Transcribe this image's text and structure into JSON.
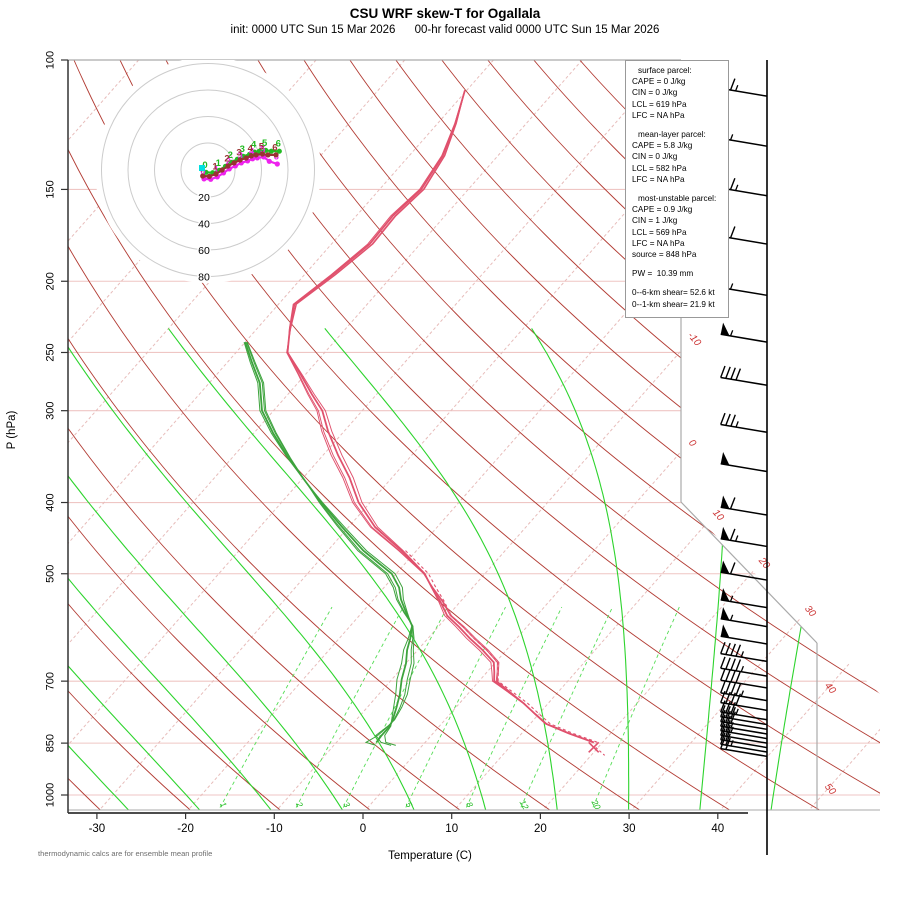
{
  "header": {
    "title": "CSU WRF skew-T for Ogallala",
    "subtitle": "init: 0000 UTC Sun 15 Mar 2026      00-hr forecast valid 0000 UTC Sun 15 Mar 2026"
  },
  "footnote": "thermodynamic calcs are for ensemble mean profile",
  "axes": {
    "ylabel": "P (hPa)",
    "xlabel": "Temperature (C)",
    "pressure_ticks": [
      100,
      150,
      200,
      250,
      300,
      400,
      500,
      700,
      850,
      1000
    ],
    "temp_ticks": [
      -30,
      -20,
      -10,
      0,
      10,
      20,
      30,
      40
    ],
    "isotherm_edge_labels": [
      -10,
      0,
      10,
      20,
      30,
      40,
      50
    ],
    "mixing_ratio_labels": [
      1,
      2,
      3,
      5,
      8,
      12,
      20
    ]
  },
  "info_box": {
    "sections": [
      {
        "title": "surface parcel:",
        "lines": [
          "CAPE = 0 J/kg",
          "CIN = 0 J/kg",
          "LCL = 619 hPa",
          "LFC = NA hPa"
        ]
      },
      {
        "title": "mean-layer parcel:",
        "lines": [
          "CAPE = 5.8 J/kg",
          "CIN = 0 J/kg",
          "LCL = 582 hPa",
          "LFC = NA hPa"
        ]
      },
      {
        "title": "most-unstable parcel:",
        "lines": [
          "CAPE = 0.9 J/kg",
          "CIN = 1 J/kg",
          "LCL = 569 hPa",
          "LFC = NA hPa",
          "source = 848 hPa"
        ]
      }
    ],
    "pw": "PW =  10.39 mm",
    "shear": [
      "0--6-km shear= 52.6 kt",
      "0--1-km shear= 21.9 kt"
    ]
  },
  "chart_data": {
    "type": "skewt",
    "temperature_profile": {
      "pressure": [
        110,
        122,
        135,
        150,
        163,
        178,
        196,
        215,
        232,
        250,
        268,
        285,
        300,
        320,
        345,
        370,
        400,
        432,
        465,
        500,
        522,
        545,
        570,
        590,
        612,
        635,
        660,
        680,
        700,
        725,
        750,
        775,
        800,
        825,
        848
      ],
      "temp_c": [
        -60.2,
        -58,
        -56.2,
        -55.3,
        -55.9,
        -55.7,
        -56.8,
        -58.2,
        -56.3,
        -54.2,
        -50.5,
        -47.3,
        -44.5,
        -41.8,
        -38.3,
        -34.8,
        -31.3,
        -27,
        -21.7,
        -16.8,
        -14.6,
        -12.3,
        -10.1,
        -7.7,
        -5.3,
        -2.7,
        -0.2,
        0.8,
        1.7,
        4.5,
        7.2,
        9.5,
        11.8,
        15.4,
        19.0
      ]
    },
    "dewpoint_profile": {
      "pressure": [
        242,
        258,
        275,
        300,
        322,
        348,
        375,
        400,
        430,
        465,
        500,
        522,
        542,
        565,
        589,
        612,
        635,
        662,
        696,
        730,
        760,
        790,
        806,
        830,
        848
      ],
      "temp_c": [
        -60,
        -57.2,
        -54.3,
        -51.3,
        -47.8,
        -43.6,
        -39.3,
        -35.5,
        -31,
        -26,
        -20.5,
        -18.3,
        -16.9,
        -15,
        -13,
        -12,
        -11.2,
        -10,
        -8.9,
        -7.6,
        -6.7,
        -5.9,
        -5.6,
        -5.6,
        -5.5
      ]
    },
    "ensemble": {
      "temp_member_amps": [
        0,
        5,
        -4,
        7
      ],
      "dew_member_amps": [
        0,
        6,
        -5,
        9
      ]
    },
    "surface_marker": {
      "pressure": 848,
      "temp_c": 19.0,
      "symbol": "x"
    },
    "wind_barbs": [
      {
        "p": 112,
        "kt": 65
      },
      {
        "p": 131,
        "kt": 55
      },
      {
        "p": 153,
        "kt": 65
      },
      {
        "p": 178,
        "kt": 60
      },
      {
        "p": 209,
        "kt": 55
      },
      {
        "p": 242,
        "kt": 55
      },
      {
        "p": 277,
        "kt": 40
      },
      {
        "p": 321,
        "kt": 35
      },
      {
        "p": 363,
        "kt": 50
      },
      {
        "p": 416,
        "kt": 60
      },
      {
        "p": 459,
        "kt": 65
      },
      {
        "p": 510,
        "kt": 60
      },
      {
        "p": 556,
        "kt": 55
      },
      {
        "p": 590,
        "kt": 55
      },
      {
        "p": 623,
        "kt": 50
      },
      {
        "p": 658,
        "kt": 45
      },
      {
        "p": 689,
        "kt": 45
      },
      {
        "p": 715,
        "kt": 40
      },
      {
        "p": 744,
        "kt": 45
      },
      {
        "p": 767,
        "kt": 40
      },
      {
        "p": 790,
        "kt": 35
      },
      {
        "p": 802,
        "kt": 30
      },
      {
        "p": 814,
        "kt": 30
      },
      {
        "p": 826,
        "kt": 25
      },
      {
        "p": 838,
        "kt": 25
      },
      {
        "p": 850,
        "kt": 20
      },
      {
        "p": 862,
        "kt": 20
      },
      {
        "p": 874,
        "kt": 25
      },
      {
        "p": 886,
        "kt": 20
      }
    ],
    "hodograph": {
      "ring_labels": [
        20,
        40,
        60,
        80
      ],
      "km_labels": [
        0,
        1,
        2,
        3,
        4,
        5,
        6
      ],
      "members": [
        {
          "name": "member-green",
          "color": "#22bb22",
          "u": [
            -1.5,
            3.5,
            8.5,
            13.1,
            17.5,
            22.1,
            26.5,
            31.2,
            35,
            38.5,
            43.3,
            47.5,
            53.5
          ],
          "v": [
            -1.7,
            -2,
            -0.2,
            2.8,
            5.8,
            8.1,
            10.3,
            11.8,
            13.4,
            14.1,
            14.8,
            14.1,
            14.1
          ]
        },
        {
          "name": "member-magenta",
          "color": "#ee22ee",
          "u": [
            -3,
            2,
            7,
            11.6,
            16,
            20.6,
            25,
            29.7,
            33.5,
            37,
            41.8,
            46,
            52
          ],
          "v": [
            -6.7,
            -7,
            -5.2,
            -2.2,
            0.8,
            3.1,
            5.3,
            6.8,
            8.4,
            9.1,
            9.8,
            6.5,
            4.5
          ]
        },
        {
          "name": "ensemble-mean",
          "color": "#993333",
          "u": [
            -4,
            1,
            6,
            10.6,
            15,
            19.6,
            24,
            28.7,
            32.5,
            36,
            40.8,
            45,
            51
          ],
          "v": [
            -4.5,
            -4.8,
            -3,
            0,
            3,
            5.3,
            7.5,
            9,
            10.6,
            11.3,
            12,
            11.3,
            11.3
          ]
        }
      ],
      "marker": {
        "type": "square",
        "color": "#00e0e0",
        "u": -4.5,
        "v": 1.5
      }
    },
    "background": {
      "isotherm_step_c": 10,
      "dry_adiabat_theta_k": {
        "from": 240,
        "to": 460,
        "step": 10
      },
      "moist_adiabat_start_c": {
        "from": -26,
        "to": 46,
        "step": 8
      },
      "mixing_ratio_g_kg": [
        1,
        2,
        3,
        5,
        8,
        12,
        20
      ]
    },
    "colors": {
      "temperature": "#e0516d",
      "dewpoint": "#3da33d",
      "dry_adiabat": "#b23b33",
      "isotherm": "#e7bcba",
      "grid": "#efc6c4",
      "moist_adiabat": "#2dd42d",
      "mixing_ratio": "#55dd55",
      "isotherm_label": "#cc3333",
      "barb": "#000000",
      "frame": "#aaaaaa",
      "hodo_ring": "#cccccc"
    }
  }
}
